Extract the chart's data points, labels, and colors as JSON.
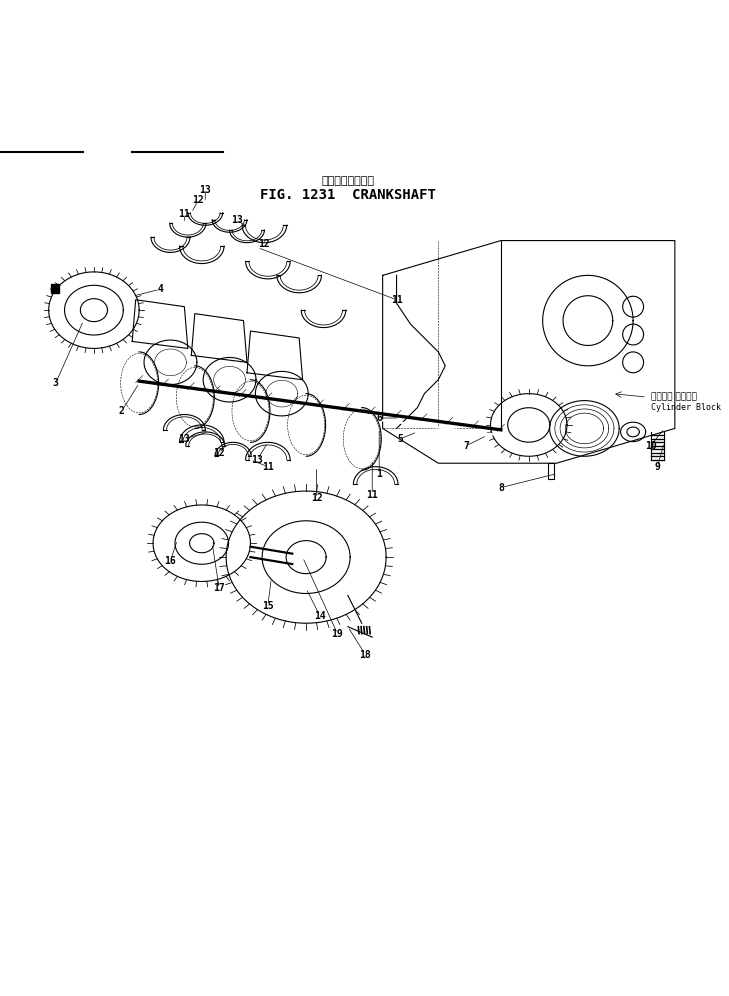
{
  "title_jp": "クランクシャフト",
  "title_en": "FIG. 1231  CRANKSHAFT",
  "bg_color": "#ffffff",
  "line_color": "#000000",
  "white_color": "#ffffff",
  "fig_width": 7.29,
  "fig_height": 9.96,
  "dpi": 100,
  "cylinder_jp": "シリンダ ブロック",
  "cylinder_en": "Cylinder Block"
}
